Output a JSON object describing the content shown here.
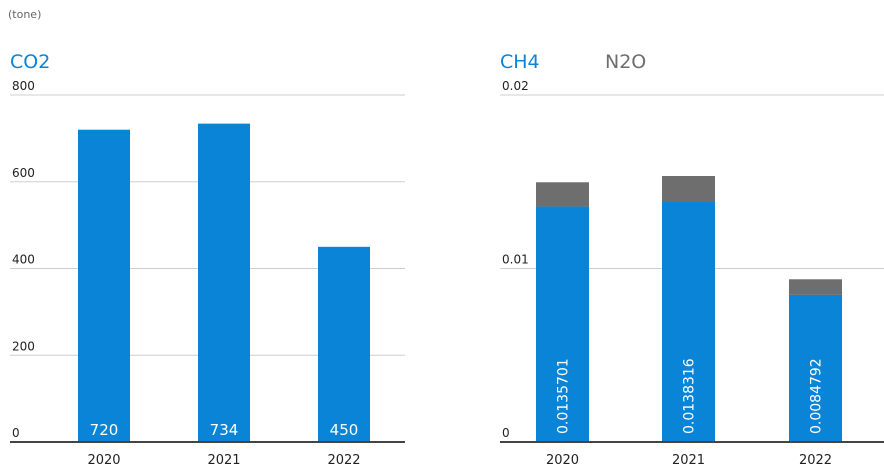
{
  "unit_label": "(tone)",
  "colors": {
    "primary": "#0a84d6",
    "secondary": "#6e6e6e",
    "grid": "#cfcfcf",
    "axis": "#444444"
  },
  "chart_data": [
    {
      "type": "bar",
      "title": "CO2",
      "categories": [
        "2020",
        "2021",
        "2022"
      ],
      "series": [
        {
          "name": "CO2",
          "values": [
            720,
            734,
            450
          ],
          "labels": [
            "720",
            "734",
            "450"
          ]
        }
      ],
      "ylim": [
        0,
        800
      ],
      "yticks": [
        0,
        200,
        400,
        600,
        800
      ],
      "ytick_labels": [
        "0",
        "200",
        "400",
        "600",
        "800"
      ],
      "grid": true
    },
    {
      "type": "bar",
      "stacked": true,
      "categories": [
        "2020",
        "2021",
        "2022"
      ],
      "series": [
        {
          "name": "CH4",
          "values": [
            0.0135701,
            0.0138316,
            0.0084792
          ],
          "labels": [
            "0.0135701",
            "0.0138316",
            "0.0084792"
          ]
        },
        {
          "name": "N2O",
          "values": [
            0.0014,
            0.0015,
            0.0009
          ]
        }
      ],
      "ylim": [
        0,
        0.02
      ],
      "yticks": [
        0,
        0.01,
        0.02
      ],
      "ytick_labels": [
        "0",
        "0.01",
        "0.02"
      ],
      "grid": true
    }
  ]
}
